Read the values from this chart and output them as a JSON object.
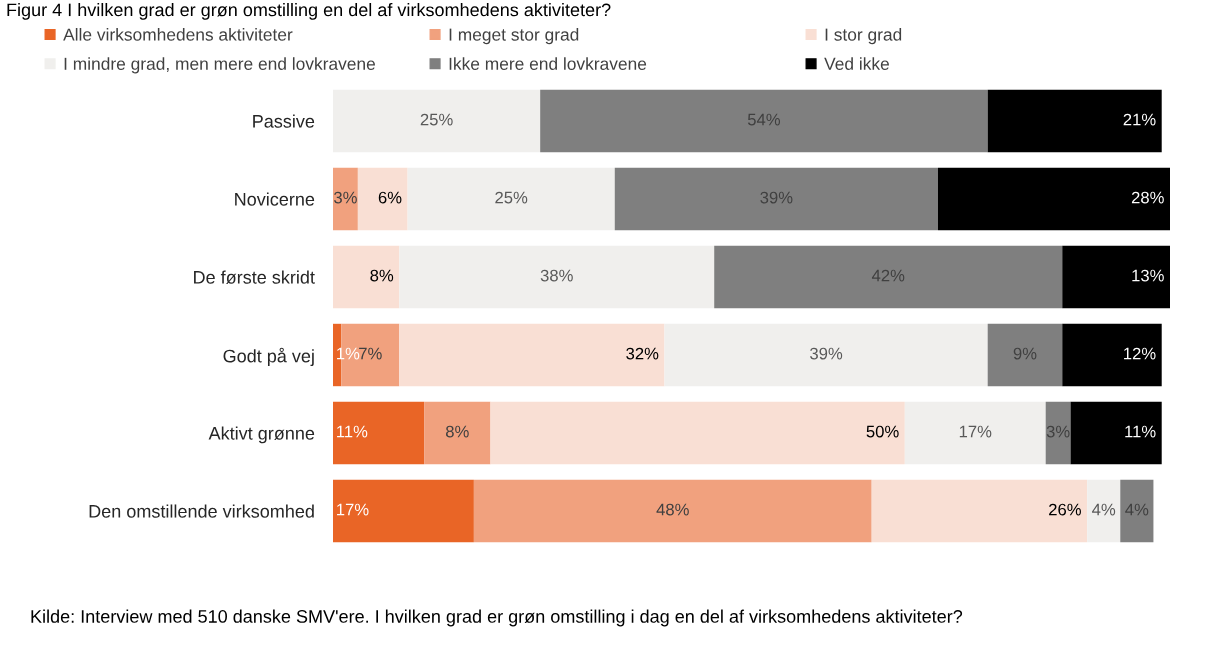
{
  "chart_data": {
    "type": "bar",
    "orientation": "horizontal",
    "stacked": true,
    "title": "Figur 4 I hvilken grad er grøn omstilling en del af virksomhedens aktiviteter?",
    "categories": [
      "Passive",
      "Novicerne",
      "De første skridt",
      "Godt på vej",
      "Aktivt grønne",
      "Den omstillende virksomhed"
    ],
    "series": [
      {
        "name": "Alle virksomhedens aktiviteter",
        "color": "#e96526",
        "values": [
          null,
          null,
          null,
          1,
          11,
          17
        ],
        "value_labels": [
          null,
          null,
          null,
          "1%",
          "11%",
          "17%"
        ]
      },
      {
        "name": "I meget stor grad",
        "color": "#f1a17e",
        "values": [
          null,
          3,
          null,
          7,
          8,
          48
        ],
        "value_labels": [
          null,
          "3%",
          null,
          "7%",
          "8%",
          "48%"
        ]
      },
      {
        "name": "I stor grad",
        "color": "#f9dfd4",
        "values": [
          null,
          6,
          8,
          32,
          50,
          26
        ],
        "value_labels": [
          null,
          "6%",
          "8%",
          "32%",
          "50%",
          "26%"
        ]
      },
      {
        "name": "I mindre grad, men mere end lovkravene",
        "color": "#f0efed",
        "values": [
          25,
          25,
          38,
          39,
          17,
          4
        ],
        "value_labels": [
          "25%",
          "25%",
          "38%",
          "39%",
          "17%",
          "4%"
        ]
      },
      {
        "name": "Ikke mere end lovkravene",
        "color": "#7f7f7f",
        "values": [
          54,
          39,
          42,
          9,
          3,
          4
        ],
        "value_labels": [
          "54%",
          "39%",
          "42%",
          "9%",
          "3%",
          "4%"
        ]
      },
      {
        "name": "Ved ikke",
        "color": "#000000",
        "values": [
          21,
          28,
          13,
          12,
          11,
          null
        ],
        "value_labels": [
          "21%",
          "28%",
          "13%",
          "12%",
          "11%",
          null
        ]
      }
    ],
    "xlim": [
      0,
      101
    ],
    "legend": "top",
    "tick_labels": "y",
    "annotations": [
      "Kilde: Interview med 510 danske SMV'ere. I hvilken grad er grøn omstilling i dag en del af virksomhedens aktiviteter?"
    ]
  }
}
